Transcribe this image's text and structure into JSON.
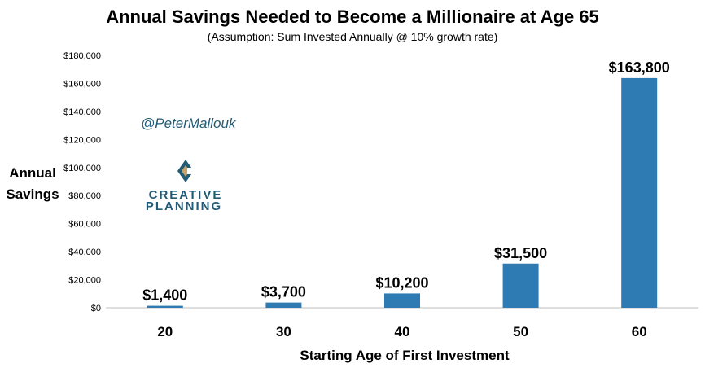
{
  "chart_data": {
    "type": "bar",
    "title": "Annual Savings Needed to Become a Millionaire at Age 65",
    "subtitle": "(Assumption: Sum Invested Annually @ 10% growth rate)",
    "xlabel": "Starting Age of First Investment",
    "ylabel_line1": "Annual",
    "ylabel_line2": "Savings",
    "categories": [
      "20",
      "30",
      "40",
      "50",
      "60"
    ],
    "values": [
      1400,
      3700,
      10200,
      31500,
      163800
    ],
    "data_labels": [
      "$1,400",
      "$3,700",
      "$10,200",
      "$31,500",
      "$163,800"
    ],
    "ylim": [
      0,
      180000
    ],
    "yticks": [
      0,
      20000,
      40000,
      60000,
      80000,
      100000,
      120000,
      140000,
      160000,
      180000
    ],
    "ytick_labels": [
      "$0",
      "$20,000",
      "$40,000",
      "$60,000",
      "$80,000",
      "$100,000",
      "$120,000",
      "$140,000",
      "$160,000",
      "$180,000"
    ],
    "grid": false,
    "bar_color": "#2e7bb4"
  },
  "watermark": {
    "handle": "@PeterMallouk",
    "brand_line1": "CREATIVE",
    "brand_line2": "PLANNING",
    "colors": {
      "navy": "#215b76",
      "gold": "#c6a46a"
    }
  }
}
